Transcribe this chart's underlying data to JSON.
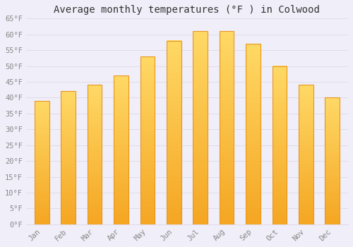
{
  "title": "Average monthly temperatures (°F ) in Colwood",
  "months": [
    "Jan",
    "Feb",
    "Mar",
    "Apr",
    "May",
    "Jun",
    "Jul",
    "Aug",
    "Sep",
    "Oct",
    "Nov",
    "Dec"
  ],
  "values": [
    39,
    42,
    44,
    47,
    53,
    58,
    61,
    61,
    57,
    50,
    44,
    40
  ],
  "bar_color_bottom": "#F5A623",
  "bar_color_top": "#FFD966",
  "bar_edge_color": "#E8961E",
  "ylim": [
    0,
    65
  ],
  "yticks": [
    0,
    5,
    10,
    15,
    20,
    25,
    30,
    35,
    40,
    45,
    50,
    55,
    60,
    65
  ],
  "background_color": "#f0eef8",
  "plot_bg_color": "#f0eef8",
  "grid_color": "#e0dde8",
  "title_fontsize": 10,
  "tick_fontsize": 7.5,
  "tick_color": "#888888",
  "font_family": "monospace",
  "bar_width": 0.55
}
